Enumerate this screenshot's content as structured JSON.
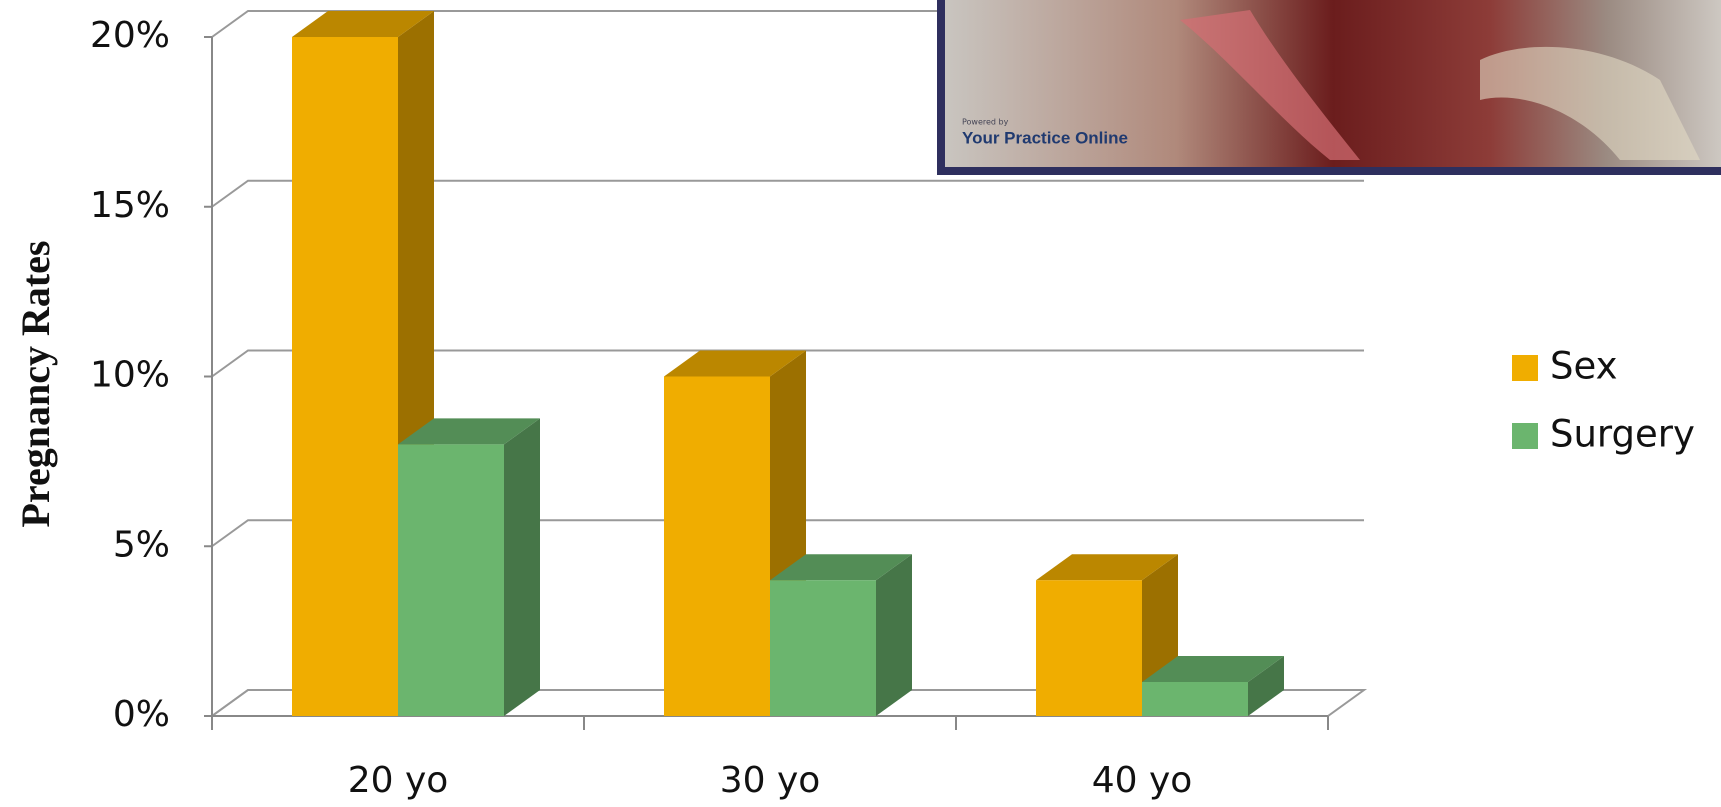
{
  "chart_data": {
    "type": "bar",
    "y_axis_label": "Pregnancy Rates",
    "categories": [
      "20 yo",
      "30 yo",
      "40 yo"
    ],
    "series": [
      {
        "name": "Sex",
        "color": "#f0ad00",
        "values": [
          20,
          10,
          4
        ]
      },
      {
        "name": "Surgery",
        "color": "#6bb56e",
        "values": [
          8,
          4,
          1
        ]
      }
    ],
    "ylim": [
      0,
      20
    ],
    "yticks": [
      {
        "value": 0,
        "label": "0%"
      },
      {
        "value": 5,
        "label": "5%"
      },
      {
        "value": 10,
        "label": "10%"
      },
      {
        "value": 15,
        "label": "15%"
      },
      {
        "value": 20,
        "label": "20%"
      }
    ],
    "grid": true,
    "legend": "right"
  },
  "inset": {
    "credit": "Powered by",
    "brand": "Your Practice Online"
  }
}
